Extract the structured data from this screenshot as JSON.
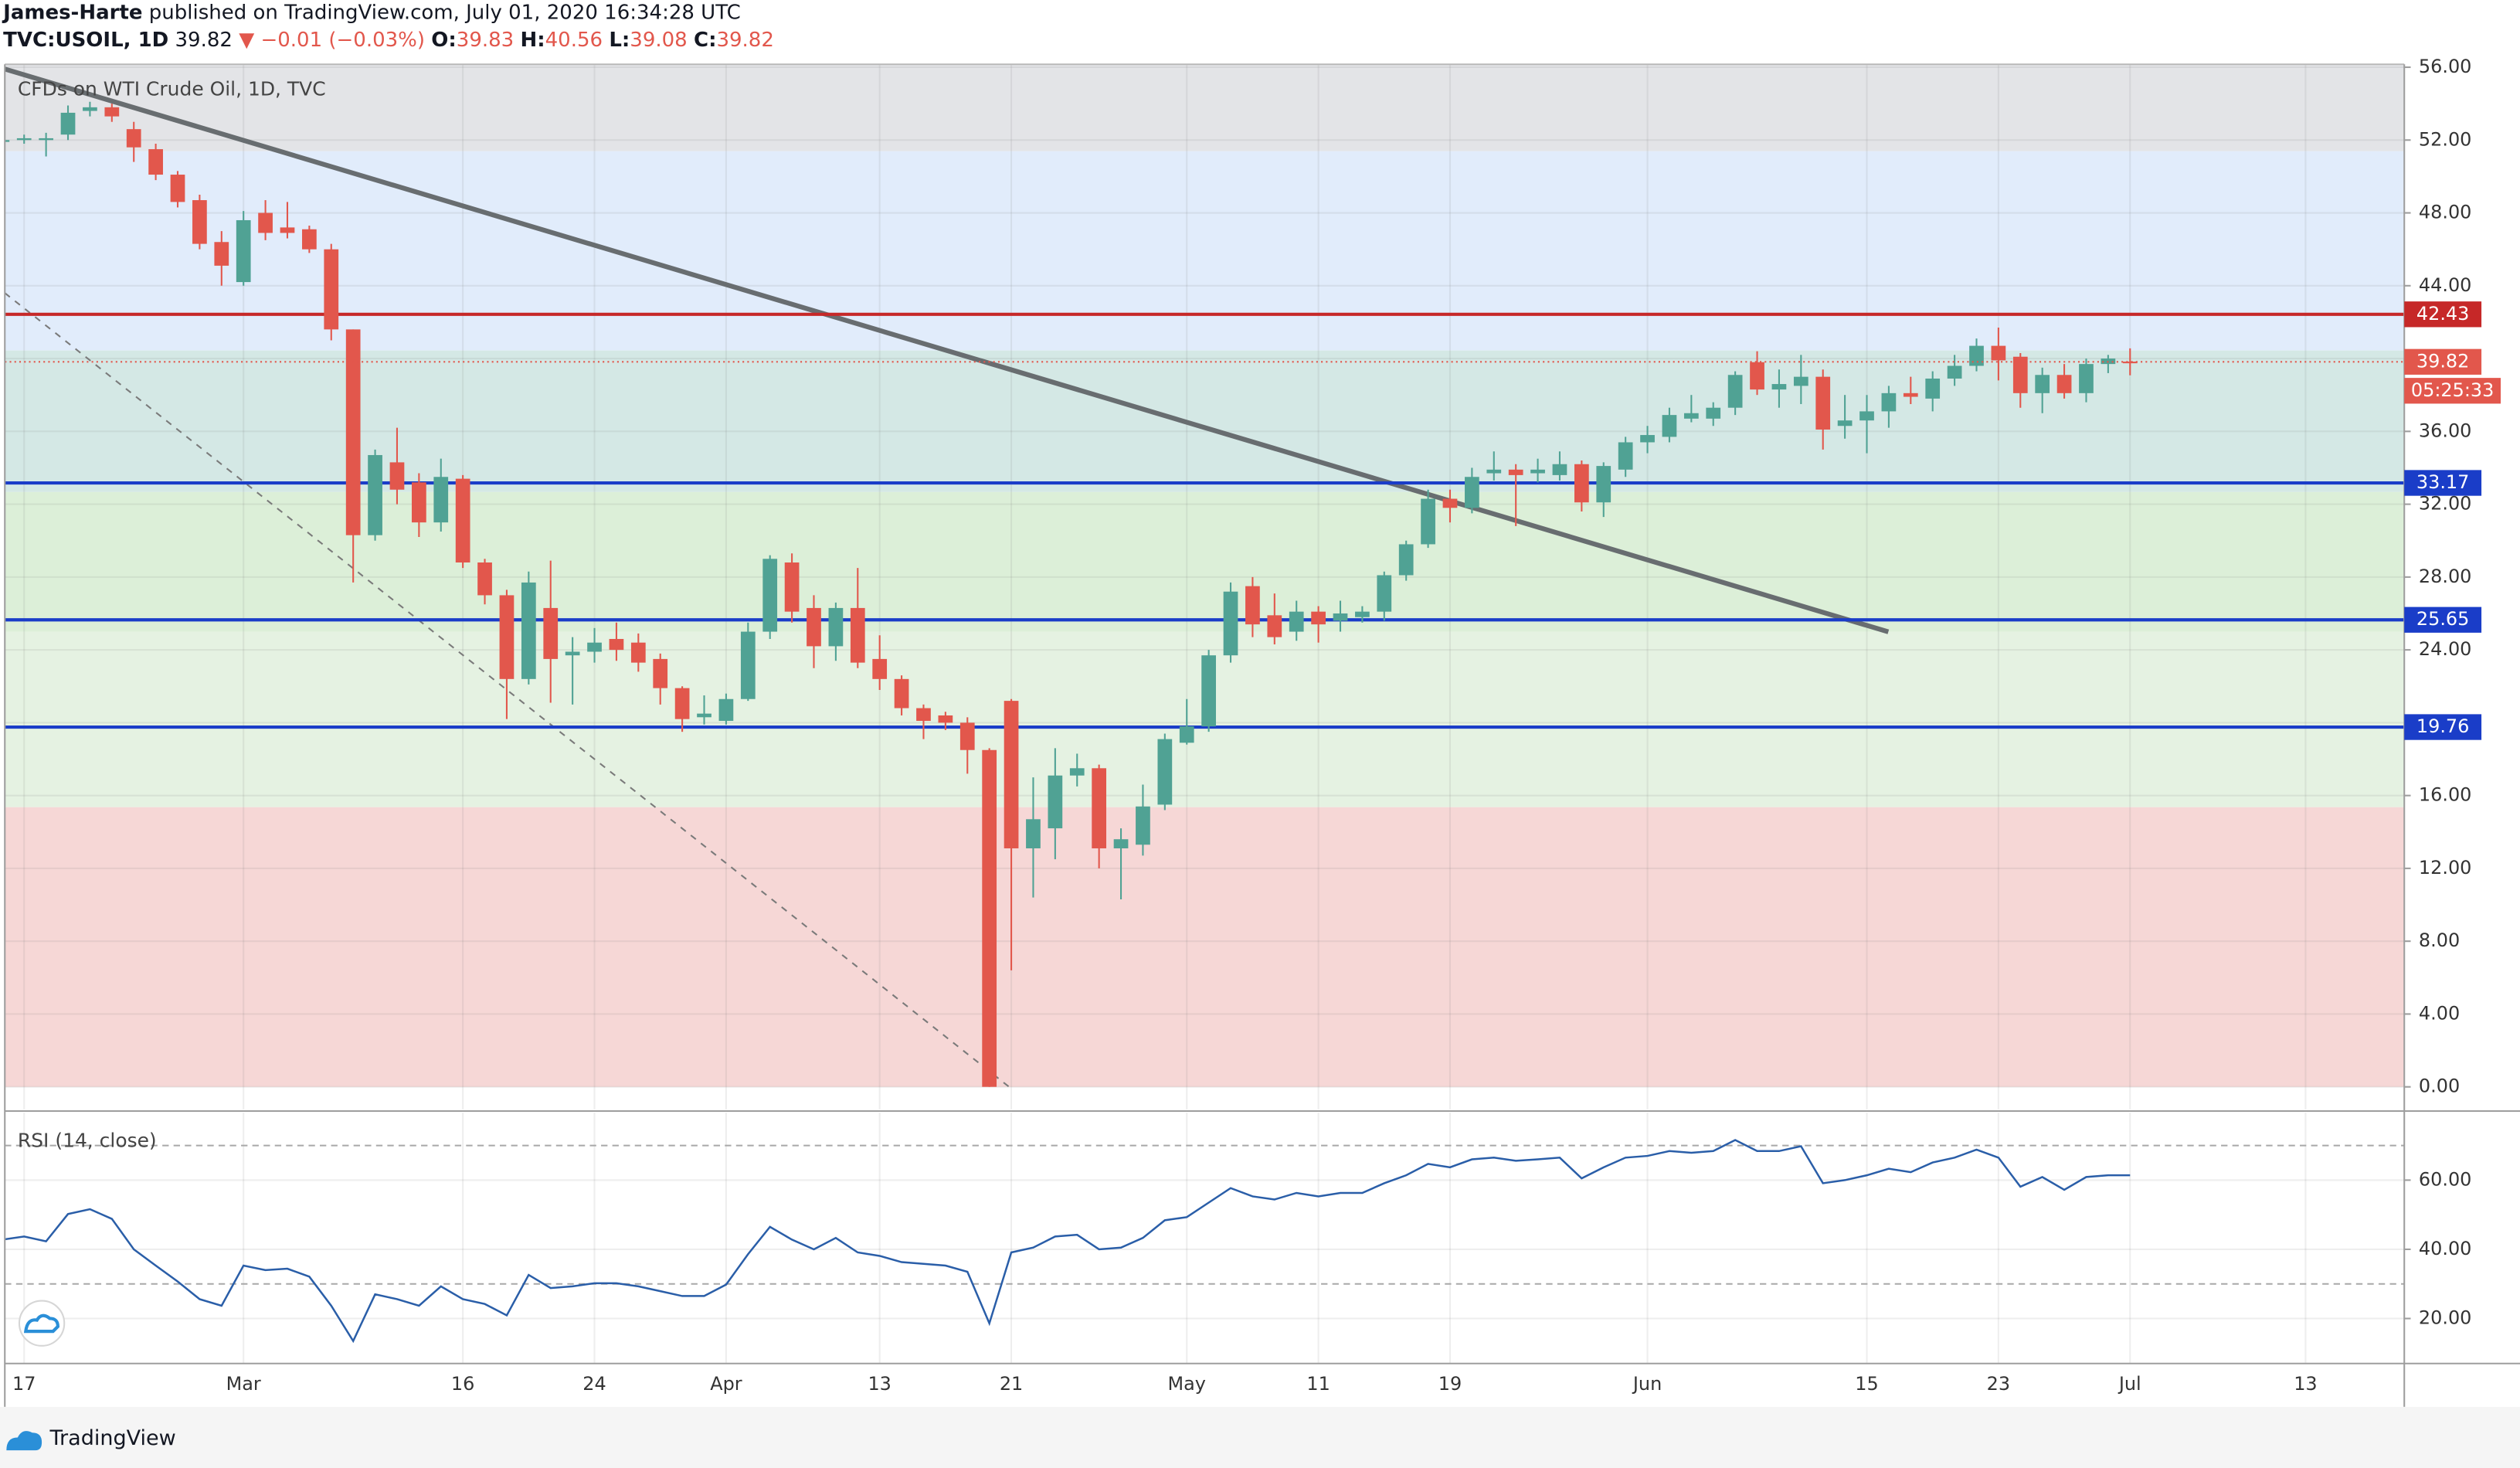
{
  "header": {
    "author": "James-Harte",
    "published": "published on TradingView.com, July 01, 2020 16:34:28 UTC",
    "symbol": "TVC:USOIL, 1D",
    "last": 39.82,
    "change": "▼ −0.01 (−0.03%)",
    "ohlc": [
      {
        "label": "O:",
        "value": 39.83
      },
      {
        "label": "H:",
        "value": 40.56
      },
      {
        "label": "L:",
        "value": 39.08
      },
      {
        "label": "C:",
        "value": 39.82
      }
    ]
  },
  "footer": {
    "brand": "TradingView"
  },
  "chart_data": [
    {
      "type": "candlestick",
      "title": "CFDs on WTI Crude Oil, 1D, TVC",
      "up_color": "#50a294",
      "down_color": "#e2574c",
      "xlim": [
        -0.88,
        108.5
      ],
      "ylim": [
        -1.24,
        56.16
      ],
      "xticks": [
        {
          "value": 0,
          "label": "17"
        },
        {
          "value": 10,
          "label": "Mar"
        },
        {
          "value": 20,
          "label": "16"
        },
        {
          "value": 26,
          "label": "24"
        },
        {
          "value": 32,
          "label": "Apr"
        },
        {
          "value": 39,
          "label": "13"
        },
        {
          "value": 45,
          "label": "21"
        },
        {
          "value": 53,
          "label": "May"
        },
        {
          "value": 59,
          "label": "11"
        },
        {
          "value": 65,
          "label": "19"
        },
        {
          "value": 74,
          "label": "Jun"
        },
        {
          "value": 84,
          "label": "15"
        },
        {
          "value": 90,
          "label": "23"
        },
        {
          "value": 96,
          "label": "Jul"
        },
        {
          "value": 104,
          "label": "13"
        }
      ],
      "yticks": [
        {
          "value": 0,
          "label": "0.00"
        },
        {
          "value": 4,
          "label": "4.00"
        },
        {
          "value": 8,
          "label": "8.00"
        },
        {
          "value": 12,
          "label": "12.00"
        },
        {
          "value": 16,
          "label": "16.00"
        },
        {
          "value": 20,
          "label": "20.00"
        },
        {
          "value": 24,
          "label": "24.00"
        },
        {
          "value": 28,
          "label": "28.00"
        },
        {
          "value": 32,
          "label": "32.00"
        },
        {
          "value": 36,
          "label": "36.00"
        },
        {
          "value": 40,
          "label": "40.00"
        },
        {
          "value": 44,
          "label": "44.00"
        },
        {
          "value": 48,
          "label": "48.00"
        },
        {
          "value": 52,
          "label": "52.00"
        },
        {
          "value": 56,
          "label": "56.00"
        }
      ],
      "grid": true,
      "zones": [
        {
          "from": 51.39,
          "to": 56.16,
          "color": "#e3e4e7"
        },
        {
          "from": 40.44,
          "to": 51.39,
          "color": "#e1ecfb"
        },
        {
          "from": 32.67,
          "to": 40.44,
          "color": "#d4e8e5"
        },
        {
          "from": 24.99,
          "to": 32.67,
          "color": "#dcefd8"
        },
        {
          "from": 15.36,
          "to": 24.99,
          "color": "#e5f2e2"
        },
        {
          "from": 0,
          "to": 15.36,
          "color": "#f6d7d6"
        }
      ],
      "levels": [
        {
          "value": 42.43,
          "color": "#c62828"
        },
        {
          "value": 33.17,
          "color": "#1a3dc8"
        },
        {
          "value": 25.65,
          "color": "#1a3dc8"
        },
        {
          "value": 19.76,
          "color": "#1a3dc8"
        }
      ],
      "trendlines": [
        {
          "points": [
            [
              -0.88,
              55.9
            ],
            [
              84.98,
              24.99
            ]
          ],
          "color": "#686d70",
          "style": "solid"
        },
        {
          "points": [
            [
              -0.88,
              43.6
            ],
            [
              44.9,
              0
            ]
          ],
          "color": "#7a7a7a",
          "style": "dashed"
        }
      ],
      "last_price": 39.82,
      "last_color": "#e2574c",
      "countdown": "05:25:33",
      "x": [
        -1,
        0,
        1,
        2,
        3,
        4,
        5,
        6,
        7,
        8,
        9,
        10,
        11,
        12,
        13,
        14,
        15,
        16,
        17,
        18,
        19,
        20,
        21,
        22,
        23,
        24,
        25,
        26,
        27,
        28,
        29,
        30,
        31,
        32,
        33,
        34,
        35,
        36,
        37,
        38,
        39,
        40,
        41,
        42,
        43,
        44,
        45,
        46,
        47,
        48,
        49,
        50,
        51,
        52,
        53,
        54,
        55,
        56,
        57,
        58,
        59,
        60,
        61,
        62,
        63,
        64,
        65,
        66,
        67,
        68,
        69,
        70,
        71,
        72,
        73,
        74,
        75,
        76,
        77,
        78,
        79,
        80,
        81,
        82,
        83,
        84,
        85,
        86,
        87,
        88,
        89,
        90,
        91,
        92,
        93,
        94,
        95,
        96
      ],
      "open": [
        51.9,
        52.0,
        52.0,
        52.3,
        53.6,
        53.8,
        52.6,
        51.5,
        50.1,
        48.7,
        46.4,
        44.2,
        48.0,
        47.2,
        47.1,
        46.0,
        41.6,
        30.3,
        34.3,
        33.2,
        31.0,
        33.4,
        28.8,
        27.0,
        22.4,
        26.3,
        23.7,
        23.9,
        24.6,
        24.4,
        23.5,
        21.9,
        20.3,
        20.1,
        21.3,
        25.0,
        28.8,
        26.3,
        24.2,
        26.3,
        23.5,
        22.4,
        20.8,
        20.4,
        20.0,
        18.5,
        21.2,
        13.1,
        14.2,
        17.1,
        17.5,
        13.1,
        13.3,
        15.5,
        18.9,
        19.8,
        23.7,
        27.5,
        25.9,
        25.0,
        26.1,
        25.6,
        25.8,
        26.1,
        28.1,
        29.8,
        32.3,
        31.8,
        33.7,
        33.9,
        33.7,
        33.6,
        34.2,
        32.1,
        33.9,
        35.4,
        35.7,
        36.7,
        36.7,
        37.3,
        39.8,
        38.3,
        38.5,
        39.0,
        36.3,
        36.6,
        37.1,
        38.1,
        37.8,
        38.9,
        39.6,
        40.7,
        40.1,
        38.1,
        39.1,
        38.1,
        39.7,
        39.83
      ],
      "high": [
        52.2,
        52.3,
        52.4,
        53.9,
        54.1,
        54.0,
        53.0,
        51.8,
        50.3,
        49.0,
        47.0,
        48.1,
        48.7,
        48.6,
        47.3,
        46.3,
        41.6,
        35.0,
        36.2,
        33.7,
        34.5,
        33.6,
        29.0,
        27.3,
        28.3,
        28.9,
        24.7,
        25.2,
        25.5,
        24.9,
        23.8,
        22.0,
        21.5,
        21.6,
        25.5,
        29.2,
        29.3,
        27.0,
        26.6,
        28.5,
        24.8,
        22.6,
        21.0,
        20.6,
        20.3,
        18.6,
        21.3,
        17.0,
        18.6,
        18.3,
        17.7,
        14.2,
        16.6,
        19.4,
        21.3,
        24.0,
        27.7,
        28.0,
        27.1,
        26.7,
        26.4,
        26.7,
        26.4,
        28.3,
        30.0,
        32.8,
        32.8,
        34.0,
        34.9,
        34.2,
        34.5,
        34.9,
        34.4,
        34.3,
        35.7,
        36.3,
        37.3,
        38.0,
        37.6,
        39.3,
        40.4,
        39.4,
        40.2,
        39.4,
        38.0,
        38.0,
        38.5,
        39.0,
        39.3,
        40.2,
        41.1,
        41.7,
        40.3,
        39.5,
        39.7,
        40.0,
        40.2,
        40.56
      ],
      "low": [
        51.6,
        51.8,
        51.1,
        52.0,
        53.3,
        53.0,
        50.8,
        49.8,
        48.3,
        46.0,
        44.0,
        44.0,
        46.5,
        46.6,
        45.8,
        41.0,
        27.7,
        30.0,
        32.0,
        30.2,
        30.5,
        28.5,
        26.5,
        20.2,
        22.1,
        21.1,
        21.0,
        23.3,
        23.4,
        22.8,
        21.0,
        19.5,
        19.9,
        19.9,
        21.2,
        24.6,
        25.5,
        23.0,
        23.4,
        23.0,
        21.8,
        20.4,
        19.1,
        19.6,
        17.2,
        0.0,
        6.4,
        10.4,
        12.5,
        16.5,
        12.0,
        10.3,
        12.7,
        15.2,
        18.8,
        19.5,
        23.3,
        24.7,
        24.3,
        24.5,
        24.4,
        25.0,
        25.5,
        25.6,
        27.8,
        29.6,
        31.0,
        31.5,
        33.3,
        30.8,
        33.2,
        33.3,
        31.6,
        31.3,
        33.5,
        34.8,
        35.4,
        36.5,
        36.3,
        36.9,
        38.0,
        37.3,
        37.5,
        35.0,
        35.6,
        34.8,
        36.2,
        37.5,
        37.1,
        38.5,
        39.3,
        38.8,
        37.3,
        37.0,
        37.8,
        37.6,
        39.2,
        39.08
      ],
      "close": [
        52.0,
        52.1,
        52.1,
        53.5,
        53.8,
        53.3,
        51.6,
        50.1,
        48.6,
        46.3,
        45.1,
        47.6,
        46.9,
        46.9,
        46.0,
        41.6,
        30.3,
        34.7,
        32.8,
        31.0,
        33.5,
        28.8,
        27.0,
        22.4,
        27.7,
        23.5,
        23.9,
        24.4,
        24.0,
        23.3,
        21.9,
        20.2,
        20.5,
        21.3,
        25.0,
        29.0,
        26.1,
        24.2,
        26.3,
        23.3,
        22.4,
        20.8,
        20.1,
        20.0,
        18.5,
        0.0,
        13.1,
        14.7,
        17.1,
        17.5,
        13.1,
        13.6,
        15.4,
        19.1,
        19.8,
        23.7,
        27.2,
        25.4,
        24.7,
        26.1,
        25.4,
        26.0,
        26.1,
        28.1,
        29.8,
        32.3,
        31.8,
        33.5,
        33.9,
        33.6,
        33.9,
        34.2,
        32.1,
        34.1,
        35.4,
        35.8,
        36.9,
        37.0,
        37.3,
        39.1,
        38.3,
        38.6,
        39.0,
        36.1,
        36.6,
        37.1,
        38.1,
        37.9,
        38.9,
        39.6,
        40.7,
        39.9,
        38.1,
        39.1,
        38.1,
        39.7,
        40.0,
        39.82
      ]
    },
    {
      "type": "line",
      "title": "RSI (14, close)",
      "color": "#2a5ea8",
      "xlim": [
        -0.88,
        108.5
      ],
      "ylim": [
        7,
        79.5
      ],
      "yticks": [
        {
          "value": 20,
          "label": "20.00"
        },
        {
          "value": 40,
          "label": "40.00"
        },
        {
          "value": 60,
          "label": "60.00"
        }
      ],
      "levels": [
        30,
        70
      ],
      "x": [
        -1,
        0,
        1,
        2,
        3,
        4,
        5,
        6,
        7,
        8,
        9,
        10,
        11,
        12,
        13,
        14,
        15,
        16,
        17,
        18,
        19,
        20,
        21,
        22,
        23,
        24,
        25,
        26,
        27,
        28,
        29,
        30,
        31,
        32,
        33,
        34,
        35,
        36,
        37,
        38,
        39,
        40,
        41,
        42,
        43,
        44,
        45,
        46,
        47,
        48,
        49,
        50,
        51,
        52,
        53,
        54,
        55,
        56,
        57,
        58,
        59,
        60,
        61,
        62,
        63,
        64,
        65,
        66,
        67,
        68,
        69,
        70,
        71,
        72,
        73,
        74,
        75,
        76,
        77,
        78,
        79,
        80,
        81,
        82,
        83,
        84,
        85,
        86,
        87,
        88,
        89,
        90,
        91,
        92,
        93,
        94,
        95,
        96
      ],
      "values": [
        42.8,
        43.7,
        42.3,
        50.2,
        51.6,
        48.8,
        40.0,
        35.3,
        30.7,
        25.6,
        23.7,
        35.3,
        34.0,
        34.4,
        32.1,
        23.7,
        13.5,
        27.0,
        25.6,
        23.7,
        29.3,
        25.6,
        24.2,
        20.9,
        32.6,
        28.8,
        29.3,
        30.2,
        30.2,
        29.3,
        27.9,
        26.5,
        26.5,
        29.8,
        38.6,
        46.5,
        42.8,
        40.0,
        43.3,
        39.1,
        38.1,
        36.3,
        35.8,
        35.3,
        33.5,
        18.6,
        39.1,
        40.5,
        43.7,
        44.2,
        40.0,
        40.5,
        43.3,
        48.4,
        49.3,
        53.5,
        57.7,
        55.3,
        54.4,
        56.3,
        55.3,
        56.3,
        56.3,
        59.1,
        61.4,
        64.7,
        63.7,
        66.0,
        66.5,
        65.6,
        66.0,
        66.5,
        60.5,
        63.7,
        66.5,
        67.0,
        68.4,
        67.9,
        68.4,
        71.6,
        68.4,
        68.4,
        69.8,
        59.1,
        60.0,
        61.4,
        63.3,
        62.3,
        65.1,
        66.5,
        68.8,
        66.5,
        58.1,
        60.9,
        57.2,
        60.9,
        61.4,
        61.4
      ]
    }
  ]
}
